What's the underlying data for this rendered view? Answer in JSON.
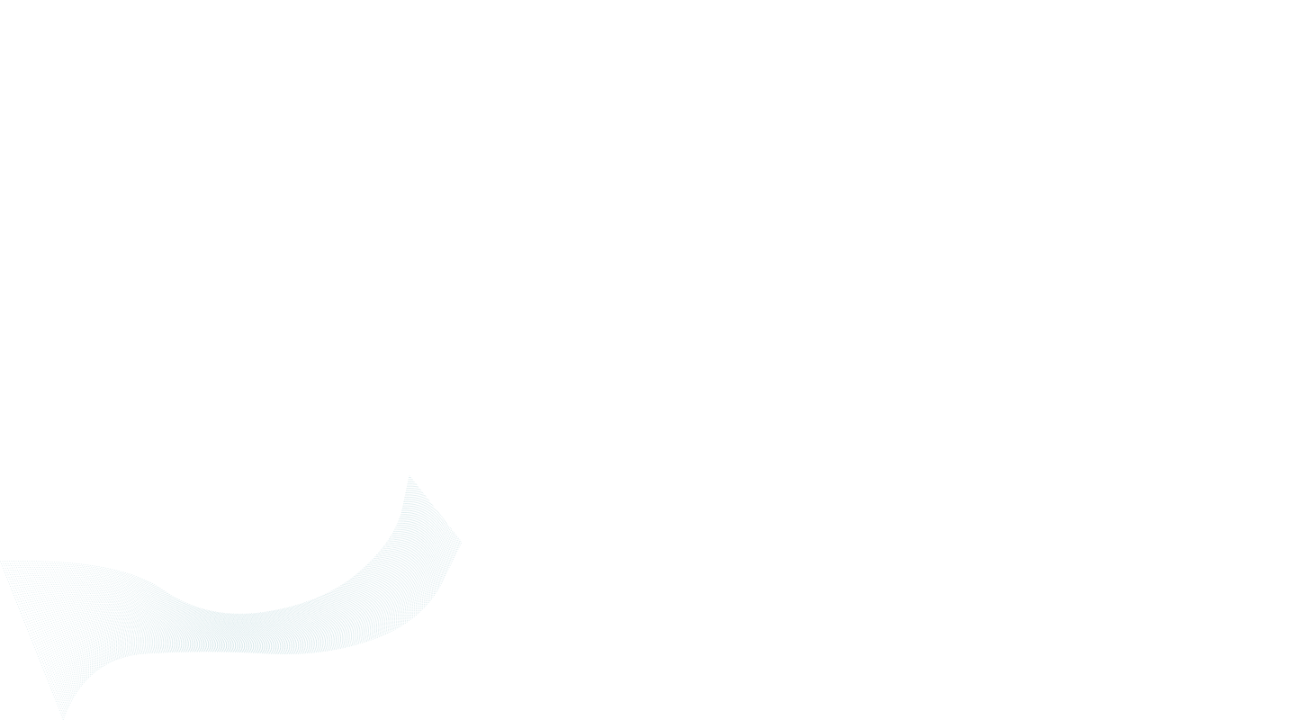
{
  "page": {
    "background_color": "#ffffff"
  },
  "decoration": {
    "icon": "wave-lines-graphic",
    "line_color": "#9cc6cc"
  }
}
